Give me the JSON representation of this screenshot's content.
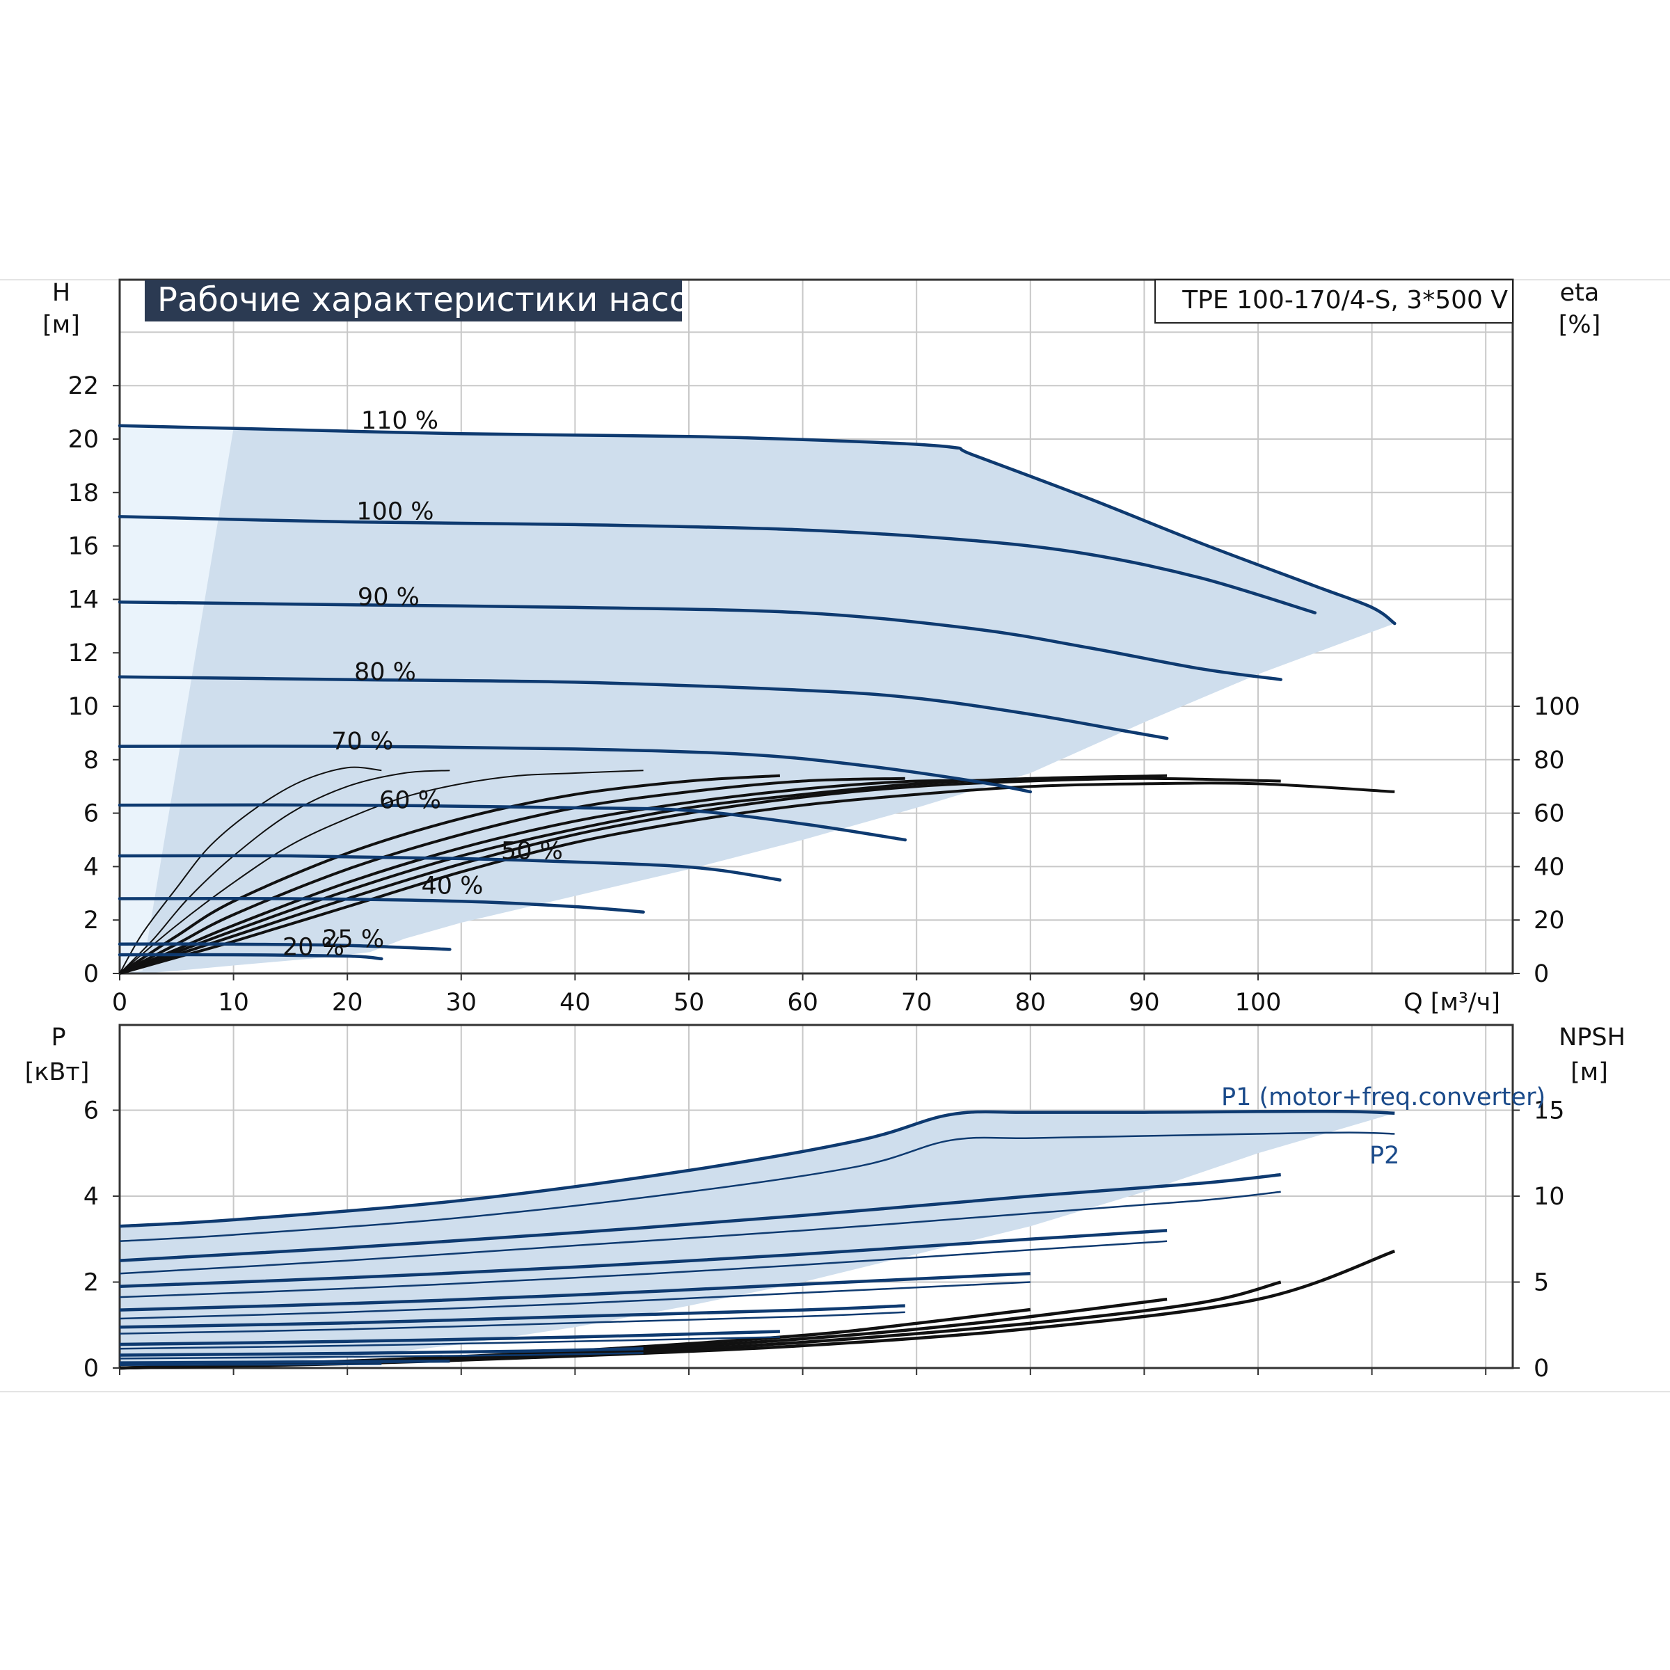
{
  "chart_data": [
    {
      "type": "line",
      "title": "Рабочие характеристики насоса",
      "model": "TPE 100-170/4-S, 3*500 V",
      "xlabel": "Q [м³/ч]",
      "ylabel": "H",
      "ylabel_unit": "[м]",
      "y2label": "eta",
      "y2label_unit": "[%]",
      "xlim": [
        0,
        122
      ],
      "ylim": [
        0,
        24.5
      ],
      "y2lim": [
        0,
        100
      ],
      "x_ticks": [
        "0",
        "10",
        "20",
        "30",
        "40",
        "50",
        "60",
        "70",
        "80",
        "90",
        "100"
      ],
      "y_ticks": [
        "0",
        "2",
        "4",
        "6",
        "8",
        "10",
        "12",
        "14",
        "16",
        "18",
        "20",
        "22"
      ],
      "y2_ticks": [
        "0",
        "20",
        "40",
        "60",
        "80",
        "100"
      ],
      "grid": true,
      "colors": {
        "curve": "#0e3a70",
        "area": "#cfdeed",
        "area_light": "#eaf3fb",
        "eta": "#111111"
      },
      "series": [
        {
          "name": "110 %",
          "x": [
            0,
            10,
            30,
            50,
            65,
            73,
            75,
            85,
            95,
            105,
            110,
            112
          ],
          "y": [
            20.5,
            20.4,
            20.2,
            20.1,
            19.9,
            19.7,
            19.4,
            17.8,
            16.1,
            14.5,
            13.7,
            13.1
          ]
        },
        {
          "name": "100 %",
          "x": [
            0,
            20,
            40,
            60,
            75,
            85,
            95,
            105
          ],
          "y": [
            17.1,
            16.9,
            16.8,
            16.6,
            16.2,
            15.7,
            14.8,
            13.5
          ]
        },
        {
          "name": "90 %",
          "x": [
            0,
            20,
            40,
            60,
            75,
            85,
            95,
            102
          ],
          "y": [
            13.9,
            13.8,
            13.7,
            13.5,
            12.9,
            12.2,
            11.4,
            11.0
          ]
        },
        {
          "name": "80 %",
          "x": [
            0,
            20,
            40,
            60,
            70,
            80,
            88,
            92
          ],
          "y": [
            11.1,
            11.0,
            10.9,
            10.6,
            10.3,
            9.7,
            9.1,
            8.8
          ]
        },
        {
          "name": "70 %",
          "x": [
            0,
            20,
            40,
            55,
            65,
            75,
            80
          ],
          "y": [
            8.5,
            8.5,
            8.4,
            8.2,
            7.8,
            7.2,
            6.8
          ]
        },
        {
          "name": "60 %",
          "x": [
            0,
            20,
            40,
            50,
            60,
            69
          ],
          "y": [
            6.3,
            6.3,
            6.2,
            6.1,
            5.6,
            5.0
          ]
        },
        {
          "name": "50 %",
          "x": [
            0,
            15,
            30,
            45,
            52,
            58
          ],
          "y": [
            4.4,
            4.4,
            4.3,
            4.1,
            3.9,
            3.5
          ]
        },
        {
          "name": "40 %",
          "x": [
            0,
            15,
            30,
            40,
            46
          ],
          "y": [
            2.8,
            2.8,
            2.7,
            2.5,
            2.3
          ]
        },
        {
          "name": "25 %",
          "x": [
            0,
            10,
            20,
            29
          ],
          "y": [
            1.1,
            1.1,
            1.05,
            0.9
          ]
        },
        {
          "name": "20 %",
          "x": [
            0,
            10,
            20,
            23
          ],
          "y": [
            0.7,
            0.7,
            0.65,
            0.55
          ]
        }
      ],
      "envelope": {
        "x": [
          0,
          10,
          30,
          50,
          65,
          73,
          75,
          85,
          95,
          105,
          110,
          112,
          100,
          90,
          80,
          70,
          60,
          50,
          40,
          30,
          25,
          22,
          18,
          10,
          5,
          2,
          0
        ],
        "y": [
          20.5,
          20.4,
          20.2,
          20.1,
          19.9,
          19.7,
          19.4,
          17.8,
          16.1,
          14.5,
          13.7,
          13.1,
          11.2,
          9.4,
          7.5,
          6.2,
          5.0,
          3.9,
          2.9,
          1.9,
          1.3,
          0.8,
          0.6,
          0.3,
          0.1,
          0,
          0
        ]
      },
      "eta_curves": [
        {
          "x": [
            0,
            2,
            5,
            8,
            12,
            16,
            20,
            23
          ],
          "y": [
            0,
            15,
            32,
            48,
            62,
            72,
            77,
            76
          ]
        },
        {
          "x": [
            0,
            3,
            6,
            10,
            15,
            20,
            25,
            29
          ],
          "y": [
            0,
            13,
            28,
            44,
            60,
            70,
            75,
            76
          ]
        },
        {
          "x": [
            0,
            5,
            10,
            15,
            20,
            25,
            30,
            35,
            40,
            46
          ],
          "y": [
            0,
            18,
            34,
            48,
            58,
            66,
            71,
            74,
            75,
            76
          ]
        },
        {
          "x": [
            0,
            5,
            10,
            20,
            30,
            40,
            50,
            58
          ],
          "y": [
            0,
            14,
            27,
            45,
            58,
            67,
            72,
            74
          ]
        },
        {
          "x": [
            0,
            5,
            10,
            20,
            30,
            40,
            50,
            60,
            69
          ],
          "y": [
            0,
            11,
            22,
            39,
            52,
            62,
            68,
            72,
            73
          ]
        },
        {
          "x": [
            0,
            5,
            10,
            20,
            30,
            40,
            50,
            60,
            70,
            80
          ],
          "y": [
            0,
            9,
            18,
            34,
            47,
            57,
            64,
            69,
            72,
            72
          ]
        },
        {
          "x": [
            0,
            5,
            10,
            20,
            30,
            40,
            50,
            60,
            70,
            80,
            92
          ],
          "y": [
            0,
            8,
            16,
            31,
            44,
            54,
            62,
            67,
            71,
            73,
            74
          ]
        },
        {
          "x": [
            0,
            5,
            10,
            20,
            30,
            40,
            50,
            60,
            70,
            80,
            90,
            102
          ],
          "y": [
            0,
            7,
            14,
            28,
            41,
            52,
            60,
            66,
            70,
            72,
            73,
            72
          ]
        },
        {
          "x": [
            0,
            5,
            10,
            20,
            30,
            40,
            50,
            60,
            70,
            80,
            90,
            100,
            112
          ],
          "y": [
            0,
            6,
            12,
            25,
            38,
            49,
            57,
            63,
            67,
            70,
            71,
            71,
            68
          ]
        }
      ],
      "labels_on_chart": [
        "110 %",
        "100 %",
        "90 %",
        "80 %",
        "70 %",
        "60 %",
        "50 %",
        "40 %",
        "25 %",
        "20 %"
      ]
    },
    {
      "type": "line",
      "xlabel": "",
      "ylabel": "P",
      "ylabel_unit": "[кВт]",
      "y2label": "NPSH",
      "y2label_unit": "[м]",
      "xlim": [
        0,
        122
      ],
      "ylim": [
        0,
        6.8
      ],
      "y2lim": [
        0,
        17
      ],
      "y_ticks": [
        "0",
        "2",
        "4",
        "6"
      ],
      "y2_ticks": [
        "0",
        "5",
        "10",
        "15"
      ],
      "grid": true,
      "series": [
        {
          "name": "P1 (motor+freq.converter)",
          "x": [
            0,
            10,
            30,
            50,
            65,
            73,
            80,
            90,
            100,
            108,
            112
          ],
          "y": [
            3.3,
            3.45,
            3.9,
            4.6,
            5.3,
            5.9,
            5.95,
            5.95,
            5.97,
            5.97,
            5.93
          ]
        },
        {
          "name": "P2",
          "x": [
            0,
            10,
            30,
            50,
            65,
            73,
            80,
            90,
            100,
            108,
            112
          ],
          "y": [
            2.95,
            3.1,
            3.5,
            4.1,
            4.7,
            5.3,
            5.35,
            5.4,
            5.45,
            5.48,
            5.45
          ]
        },
        {
          "name": "",
          "x": [
            0,
            20,
            40,
            60,
            80,
            95,
            102
          ],
          "y": [
            2.5,
            2.8,
            3.15,
            3.55,
            4.0,
            4.3,
            4.5
          ]
        },
        {
          "name": "",
          "x": [
            0,
            20,
            40,
            60,
            80,
            95,
            102
          ],
          "y": [
            2.2,
            2.5,
            2.85,
            3.2,
            3.6,
            3.9,
            4.1
          ]
        },
        {
          "name": "",
          "x": [
            0,
            20,
            40,
            60,
            80,
            92
          ],
          "y": [
            1.9,
            2.1,
            2.35,
            2.65,
            3.0,
            3.2
          ]
        },
        {
          "name": "",
          "x": [
            0,
            20,
            40,
            60,
            80,
            92
          ],
          "y": [
            1.65,
            1.85,
            2.1,
            2.4,
            2.75,
            2.95
          ]
        },
        {
          "name": "",
          "x": [
            0,
            20,
            40,
            60,
            80
          ],
          "y": [
            1.35,
            1.5,
            1.7,
            1.95,
            2.2
          ]
        },
        {
          "name": "",
          "x": [
            0,
            20,
            40,
            60,
            80
          ],
          "y": [
            1.15,
            1.3,
            1.5,
            1.75,
            2.0
          ]
        },
        {
          "name": "",
          "x": [
            0,
            20,
            40,
            60,
            69
          ],
          "y": [
            0.95,
            1.05,
            1.2,
            1.35,
            1.45
          ]
        },
        {
          "name": "",
          "x": [
            0,
            20,
            40,
            60,
            69
          ],
          "y": [
            0.8,
            0.9,
            1.05,
            1.2,
            1.3
          ]
        },
        {
          "name": "",
          "x": [
            0,
            20,
            40,
            58
          ],
          "y": [
            0.55,
            0.62,
            0.72,
            0.85
          ]
        },
        {
          "name": "",
          "x": [
            0,
            20,
            40,
            58
          ],
          "y": [
            0.45,
            0.52,
            0.62,
            0.72
          ]
        },
        {
          "name": "",
          "x": [
            0,
            20,
            35,
            46
          ],
          "y": [
            0.3,
            0.34,
            0.39,
            0.45
          ]
        },
        {
          "name": "",
          "x": [
            0,
            20,
            35,
            46
          ],
          "y": [
            0.22,
            0.26,
            0.3,
            0.35
          ]
        },
        {
          "name": "",
          "x": [
            0,
            15,
            29
          ],
          "y": [
            0.12,
            0.14,
            0.16
          ]
        },
        {
          "name": "",
          "x": [
            0,
            15,
            23
          ],
          "y": [
            0.07,
            0.08,
            0.09
          ]
        }
      ],
      "envelope": {
        "x": [
          0,
          10,
          30,
          50,
          65,
          73,
          80,
          90,
          100,
          108,
          112,
          100,
          90,
          80,
          70,
          60,
          50,
          40,
          30,
          20,
          10,
          5,
          0
        ],
        "y": [
          3.3,
          3.45,
          3.9,
          4.6,
          5.3,
          5.9,
          5.95,
          5.95,
          5.97,
          5.97,
          5.93,
          5.0,
          4.1,
          3.3,
          2.65,
          2.0,
          1.45,
          0.95,
          0.55,
          0.25,
          0.1,
          0.02,
          0
        ]
      },
      "npsh_curves": [
        {
          "x": [
            0,
            20,
            40,
            60,
            70,
            80
          ],
          "y": [
            0,
            0.4,
            1.0,
            1.9,
            2.6,
            3.4
          ]
        },
        {
          "x": [
            0,
            20,
            40,
            60,
            75,
            92
          ],
          "y": [
            0,
            0.35,
            0.9,
            1.7,
            2.6,
            4.0
          ]
        },
        {
          "x": [
            0,
            20,
            40,
            60,
            80,
            95,
            102
          ],
          "y": [
            0,
            0.3,
            0.8,
            1.5,
            2.6,
            3.8,
            5.0
          ]
        },
        {
          "x": [
            0,
            20,
            40,
            60,
            80,
            100,
            112
          ],
          "y": [
            0,
            0.25,
            0.7,
            1.3,
            2.3,
            4.0,
            6.8
          ]
        }
      ]
    }
  ]
}
